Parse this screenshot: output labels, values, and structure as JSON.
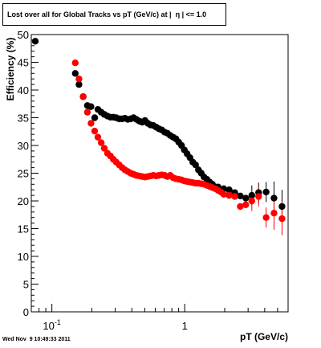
{
  "footer_text": "Wed Nov  9 10:49:33 2011",
  "colors": {
    "series_all": "#000000",
    "series_global": "#ff0000",
    "frame": "#000000"
  },
  "chart_data": {
    "type": "scatter",
    "title": "Lost over all for Global Tracks vs pT (GeV/c) at |  η | <= 1.0",
    "xlabel": "pT (GeV/c)",
    "ylabel": "Efficiency (%)",
    "x_scale": "log",
    "xlim": [
      0.07,
      6.0
    ],
    "ylim": [
      0,
      50
    ],
    "y_ticks": [
      0,
      5,
      10,
      15,
      20,
      25,
      30,
      35,
      40,
      45,
      50
    ],
    "x_tick_labels": [
      {
        "value": 0.1,
        "base": "10",
        "exp": "-1"
      },
      {
        "value": 1,
        "base": "1",
        "exp": ""
      }
    ],
    "grid": false,
    "legend": "none",
    "series": [
      {
        "color": "#000000",
        "points": [
          {
            "x": 0.075,
            "y": 48.8
          },
          {
            "x": 0.15,
            "y": 43.0
          },
          {
            "x": 0.16,
            "y": 41.0
          },
          {
            "x": 0.172,
            "y": 38.8
          },
          {
            "x": 0.185,
            "y": 37.2
          },
          {
            "x": 0.197,
            "y": 37.0
          },
          {
            "x": 0.21,
            "y": 35.0
          },
          {
            "x": 0.222,
            "y": 36.5
          },
          {
            "x": 0.235,
            "y": 36.0
          },
          {
            "x": 0.248,
            "y": 35.6
          },
          {
            "x": 0.262,
            "y": 35.3
          },
          {
            "x": 0.276,
            "y": 35.1
          },
          {
            "x": 0.29,
            "y": 35.1
          },
          {
            "x": 0.305,
            "y": 35.0
          },
          {
            "x": 0.321,
            "y": 34.8
          },
          {
            "x": 0.338,
            "y": 34.8
          },
          {
            "x": 0.355,
            "y": 34.9
          },
          {
            "x": 0.373,
            "y": 34.7
          },
          {
            "x": 0.392,
            "y": 34.8
          },
          {
            "x": 0.412,
            "y": 35.0
          },
          {
            "x": 0.433,
            "y": 34.7
          },
          {
            "x": 0.455,
            "y": 34.4
          },
          {
            "x": 0.478,
            "y": 34.2
          },
          {
            "x": 0.502,
            "y": 34.5
          },
          {
            "x": 0.527,
            "y": 34.0
          },
          {
            "x": 0.553,
            "y": 33.7
          },
          {
            "x": 0.581,
            "y": 33.6
          },
          {
            "x": 0.61,
            "y": 33.3
          },
          {
            "x": 0.64,
            "y": 33.0
          },
          {
            "x": 0.672,
            "y": 32.8
          },
          {
            "x": 0.706,
            "y": 32.4
          },
          {
            "x": 0.741,
            "y": 32.2
          },
          {
            "x": 0.778,
            "y": 31.8
          },
          {
            "x": 0.817,
            "y": 31.5
          },
          {
            "x": 0.858,
            "y": 31.2
          },
          {
            "x": 0.901,
            "y": 30.6
          },
          {
            "x": 0.946,
            "y": 30.0
          },
          {
            "x": 0.993,
            "y": 29.2
          },
          {
            "x": 1.043,
            "y": 28.5
          },
          {
            "x": 1.095,
            "y": 27.8
          },
          {
            "x": 1.15,
            "y": 27.0
          },
          {
            "x": 1.207,
            "y": 26.5
          },
          {
            "x": 1.268,
            "y": 25.6
          },
          {
            "x": 1.331,
            "y": 25.0
          },
          {
            "x": 1.398,
            "y": 24.3
          },
          {
            "x": 1.468,
            "y": 23.9
          },
          {
            "x": 1.541,
            "y": 23.4
          },
          {
            "x": 1.618,
            "y": 23.0
          },
          {
            "x": 1.699,
            "y": 22.5
          },
          {
            "x": 1.784,
            "y": 22.5
          },
          {
            "x": 1.873,
            "y": 22.0
          },
          {
            "x": 1.967,
            "y": 22.2
          },
          {
            "x": 2.16,
            "y": 22.0
          },
          {
            "x": 2.38,
            "y": 21.5
          },
          {
            "x": 2.62,
            "y": 20.9
          },
          {
            "x": 2.88,
            "y": 20.5
          },
          {
            "x": 3.2,
            "y": 21.0
          },
          {
            "x": 3.6,
            "y": 21.5
          },
          {
            "x": 4.1,
            "y": 21.6
          },
          {
            "x": 4.7,
            "y": 20.5
          },
          {
            "x": 5.4,
            "y": 19.0
          }
        ]
      },
      {
        "color": "#ff0000",
        "points": [
          {
            "x": 0.15,
            "y": 44.9
          },
          {
            "x": 0.16,
            "y": 42.0
          },
          {
            "x": 0.172,
            "y": 38.8
          },
          {
            "x": 0.185,
            "y": 36.0
          },
          {
            "x": 0.197,
            "y": 34.0
          },
          {
            "x": 0.21,
            "y": 32.6
          },
          {
            "x": 0.222,
            "y": 31.5
          },
          {
            "x": 0.235,
            "y": 30.5
          },
          {
            "x": 0.248,
            "y": 29.5
          },
          {
            "x": 0.262,
            "y": 28.6
          },
          {
            "x": 0.276,
            "y": 28.1
          },
          {
            "x": 0.29,
            "y": 27.5
          },
          {
            "x": 0.305,
            "y": 27.0
          },
          {
            "x": 0.321,
            "y": 26.5
          },
          {
            "x": 0.338,
            "y": 26.0
          },
          {
            "x": 0.355,
            "y": 25.6
          },
          {
            "x": 0.373,
            "y": 25.3
          },
          {
            "x": 0.392,
            "y": 25.0
          },
          {
            "x": 0.412,
            "y": 24.8
          },
          {
            "x": 0.433,
            "y": 24.6
          },
          {
            "x": 0.455,
            "y": 24.5
          },
          {
            "x": 0.478,
            "y": 24.4
          },
          {
            "x": 0.502,
            "y": 24.3
          },
          {
            "x": 0.527,
            "y": 24.4
          },
          {
            "x": 0.553,
            "y": 24.5
          },
          {
            "x": 0.581,
            "y": 24.6
          },
          {
            "x": 0.61,
            "y": 24.5
          },
          {
            "x": 0.64,
            "y": 24.6
          },
          {
            "x": 0.672,
            "y": 24.7
          },
          {
            "x": 0.706,
            "y": 24.6
          },
          {
            "x": 0.741,
            "y": 24.4
          },
          {
            "x": 0.778,
            "y": 24.6
          },
          {
            "x": 0.817,
            "y": 24.2
          },
          {
            "x": 0.858,
            "y": 24.0
          },
          {
            "x": 0.901,
            "y": 23.9
          },
          {
            "x": 0.946,
            "y": 23.8
          },
          {
            "x": 0.993,
            "y": 23.6
          },
          {
            "x": 1.043,
            "y": 23.5
          },
          {
            "x": 1.095,
            "y": 23.4
          },
          {
            "x": 1.15,
            "y": 23.3
          },
          {
            "x": 1.207,
            "y": 23.2
          },
          {
            "x": 1.268,
            "y": 23.2
          },
          {
            "x": 1.331,
            "y": 23.1
          },
          {
            "x": 1.398,
            "y": 23.0
          },
          {
            "x": 1.468,
            "y": 22.8
          },
          {
            "x": 1.541,
            "y": 22.6
          },
          {
            "x": 1.618,
            "y": 22.4
          },
          {
            "x": 1.699,
            "y": 22.2
          },
          {
            "x": 1.784,
            "y": 21.9
          },
          {
            "x": 1.873,
            "y": 21.6
          },
          {
            "x": 1.967,
            "y": 21.2
          },
          {
            "x": 2.16,
            "y": 21.0
          },
          {
            "x": 2.38,
            "y": 20.8
          },
          {
            "x": 2.62,
            "y": 19.0
          },
          {
            "x": 2.88,
            "y": 19.3
          },
          {
            "x": 3.2,
            "y": 20.0
          },
          {
            "x": 3.6,
            "y": 20.8
          },
          {
            "x": 4.1,
            "y": 17.0
          },
          {
            "x": 4.7,
            "y": 17.8
          },
          {
            "x": 5.4,
            "y": 16.8
          }
        ]
      }
    ]
  }
}
